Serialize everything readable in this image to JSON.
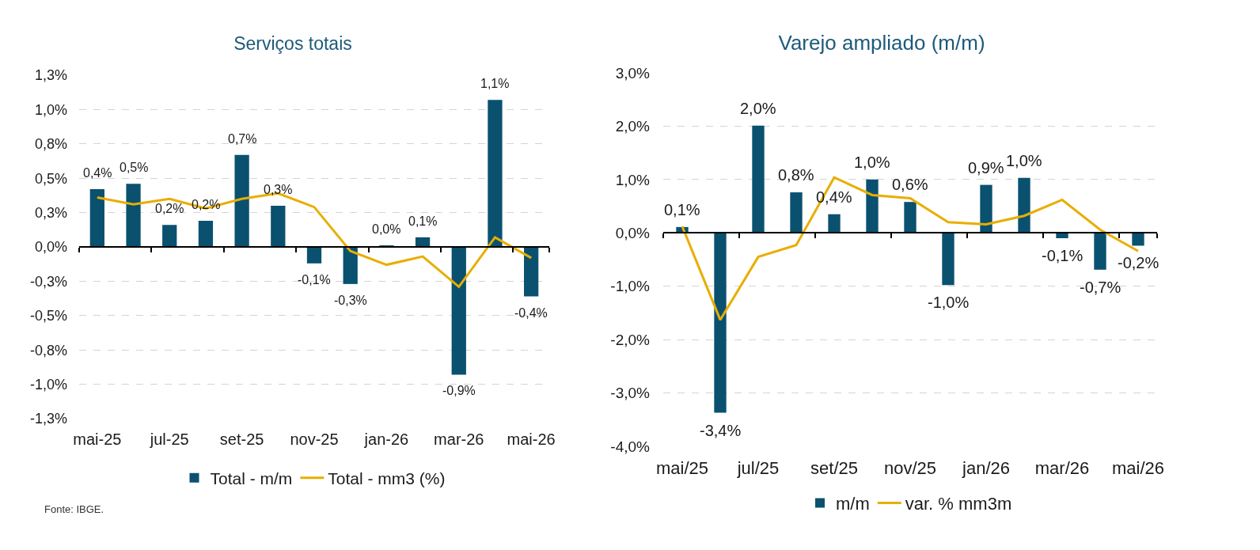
{
  "chart_data": [
    {
      "type": "bar",
      "title": "Serviços totais",
      "categories": [
        "mai-25",
        null,
        "jul-25",
        null,
        "set-25",
        null,
        "nov-25",
        null,
        "jan-26",
        null,
        "mar-26",
        null,
        "mai-26"
      ],
      "series": [
        {
          "name": "Total - m/m",
          "color": "#0a5170",
          "values": [
            0.42,
            0.46,
            0.16,
            0.19,
            0.67,
            0.3,
            -0.12,
            -0.27,
            0.01,
            0.07,
            -0.93,
            1.07,
            -0.36
          ],
          "value_labels": [
            "0,4%",
            "0,5%",
            "0,2%",
            "0,2%",
            "0,7%",
            "0,3%",
            "-0,1%",
            "-0,3%",
            "0,0%",
            "0,1%",
            "-0,9%",
            "1,1%",
            "-0,4%"
          ]
        },
        {
          "name": "Total - mm3 (%)",
          "type": "line",
          "color": "#e8ae00",
          "values": [
            0.36,
            0.31,
            0.35,
            0.28,
            0.35,
            0.39,
            0.29,
            -0.03,
            -0.13,
            -0.07,
            -0.29,
            0.07,
            -0.08
          ]
        }
      ],
      "ylim": [
        -1.25,
        1.25
      ],
      "yticks": [
        {
          "value": 1.25,
          "label": "1,3%"
        },
        {
          "value": 1.0,
          "label": "1,0%"
        },
        {
          "value": 0.75,
          "label": "0,8%"
        },
        {
          "value": 0.5,
          "label": "0,5%"
        },
        {
          "value": 0.25,
          "label": "0,3%"
        },
        {
          "value": 0,
          "label": "0,0%"
        },
        {
          "value": -0.25,
          "label": "-0,3%"
        },
        {
          "value": -0.5,
          "label": "-0,5%"
        },
        {
          "value": -0.75,
          "label": "-0,8%"
        },
        {
          "value": -1.0,
          "label": "-1,0%"
        },
        {
          "value": -1.25,
          "label": "-1,3%"
        }
      ],
      "grid": "y",
      "legend": "bottom",
      "annotations": [
        "Fonte: IBGE."
      ]
    },
    {
      "type": "bar",
      "title": "Varejo ampliado (m/m)",
      "categories": [
        "mai/25",
        null,
        "jul/25",
        null,
        "set/25",
        null,
        "nov/25",
        null,
        "jan/26",
        null,
        "mar/26",
        null,
        "mai/26"
      ],
      "series": [
        {
          "name": "m/m",
          "color": "#0a5170",
          "values": [
            0.11,
            -3.37,
            2.01,
            0.76,
            0.35,
            1.0,
            0.58,
            -0.98,
            0.9,
            1.03,
            -0.1,
            -0.69,
            -0.24
          ],
          "value_labels": [
            "0,1%",
            "-3,4%",
            "2,0%",
            "0,8%",
            "0,4%",
            "1,0%",
            "0,6%",
            "-1,0%",
            "0,9%",
            "1,0%",
            "-0,1%",
            "-0,7%",
            "-0,2%"
          ]
        },
        {
          "name": "var. % mm3m",
          "type": "line",
          "color": "#e8ae00",
          "values": [
            0.12,
            -1.63,
            -0.45,
            -0.23,
            1.04,
            0.71,
            0.65,
            0.2,
            0.16,
            0.32,
            0.62,
            0.06,
            -0.34
          ]
        }
      ],
      "ylim": [
        -4,
        3
      ],
      "yticks": [
        {
          "value": 3,
          "label": "3,0%"
        },
        {
          "value": 2,
          "label": "2,0%"
        },
        {
          "value": 1,
          "label": "1,0%"
        },
        {
          "value": 0,
          "label": "0,0%"
        },
        {
          "value": -1,
          "label": "-1,0%"
        },
        {
          "value": -2,
          "label": "-2,0%"
        },
        {
          "value": -3,
          "label": "-3,0%"
        },
        {
          "value": -4,
          "label": "-4,0%"
        }
      ],
      "grid": "y",
      "legend": "bottom"
    }
  ]
}
